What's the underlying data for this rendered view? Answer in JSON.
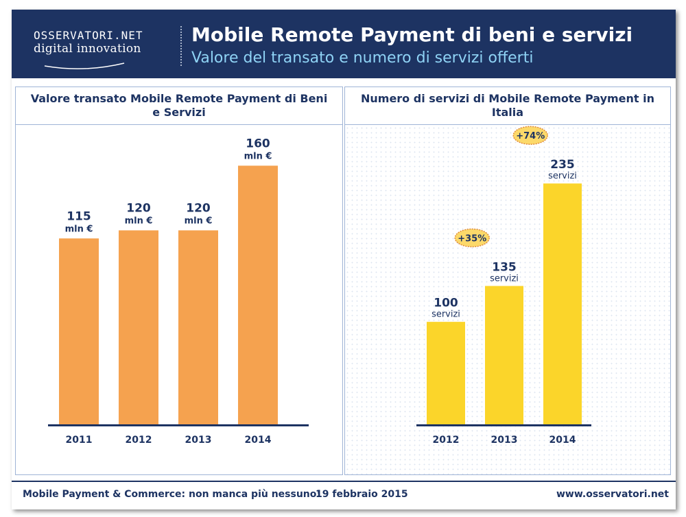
{
  "header": {
    "logo_line1": "OSSERVATORI.NET",
    "logo_line2": "digital innovation",
    "title": "Mobile Remote Payment di beni e servizi",
    "subtitle": "Valore del transato e numero di servizi offerti"
  },
  "footer": {
    "left_text": "Mobile Payment & Commerce: non manca più nessuno!",
    "date": "19 febbraio 2015",
    "website": "www.osservatori.net"
  },
  "colors": {
    "navy": "#1d3362",
    "orange": "#f5a24f",
    "yellow": "#fbd52a",
    "badge": "#fcd96a"
  },
  "chart_data": [
    {
      "type": "bar",
      "title": "Valore transato Mobile Remote Payment di Beni e Servizi",
      "categories": [
        "2011",
        "2012",
        "2013",
        "2014"
      ],
      "values": [
        115,
        120,
        120,
        160
      ],
      "value_labels": [
        "115",
        "120",
        "120",
        "160"
      ],
      "unit_label": "mln €",
      "ylim": [
        0,
        175
      ],
      "color": "#f5a24f"
    },
    {
      "type": "bar",
      "title": "Numero di servizi di Mobile Remote Payment in Italia",
      "categories": [
        "2012",
        "2013",
        "2014"
      ],
      "values": [
        100,
        135,
        235
      ],
      "value_labels": [
        "100",
        "135",
        "235"
      ],
      "unit_label": "servizi",
      "ylim": [
        0,
        270
      ],
      "color": "#fbd52a",
      "growth_badges": [
        {
          "between": [
            "2012",
            "2013"
          ],
          "label": "+35%"
        },
        {
          "between": [
            "2013",
            "2014"
          ],
          "label": "+74%"
        }
      ]
    }
  ]
}
